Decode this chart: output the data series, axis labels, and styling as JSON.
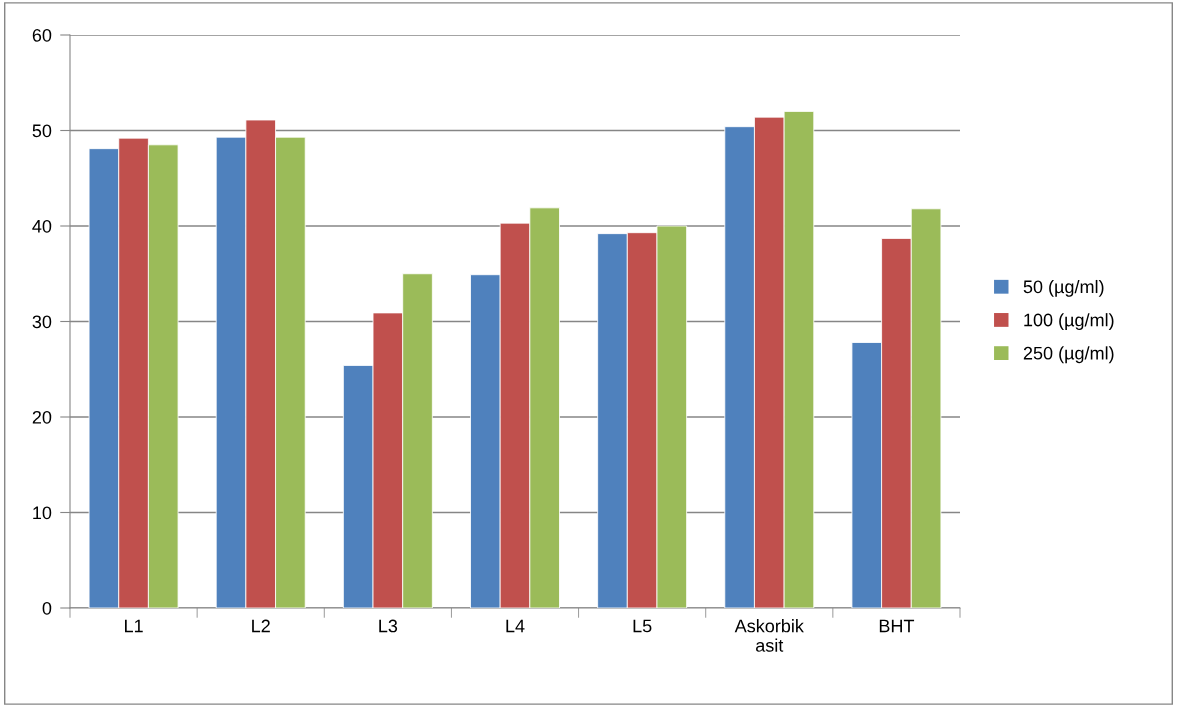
{
  "chart_data": {
    "type": "bar",
    "categories": [
      "L1",
      "L2",
      "L3",
      "L4",
      "L5",
      "Askorbik\nasit",
      "BHT"
    ],
    "series": [
      {
        "name": "50 (µg/ml)",
        "color": "#4f81bd",
        "values": [
          48.1,
          49.3,
          25.4,
          34.9,
          39.2,
          50.4,
          27.8
        ]
      },
      {
        "name": "100 (µg/ml)",
        "color": "#c0504d",
        "values": [
          49.2,
          51.1,
          30.9,
          40.3,
          39.3,
          51.4,
          38.7
        ]
      },
      {
        "name": "250 (µg/ml)",
        "color": "#9bbb59",
        "values": [
          48.5,
          49.3,
          35.0,
          41.9,
          40.0,
          52.0,
          41.8
        ]
      }
    ],
    "ylim": [
      0,
      60
    ],
    "yticks": [
      0,
      10,
      20,
      30,
      40,
      50,
      60
    ],
    "grid": "y",
    "legend": "right"
  }
}
